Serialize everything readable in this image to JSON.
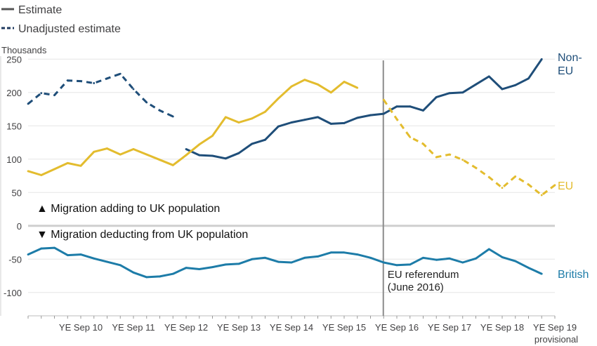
{
  "chart_data": {
    "type": "line",
    "ylabel": "Thousands",
    "ylim": [
      -135,
      265
    ],
    "y_ticks": [
      250,
      200,
      150,
      100,
      50,
      0,
      -50,
      -100
    ],
    "x_tick_labels": [
      "YE Sep 10",
      "YE Sep 11",
      "YE Sep 12",
      "YE Sep 13",
      "YE Sep 14",
      "YE Sep 15",
      "YE Sep 16",
      "YE Sep 17",
      "YE Sep 18",
      "YE Sep 19"
    ],
    "x_tick_sublabel": "provisional",
    "grid": "horizontal",
    "legend": {
      "placement": "top-left",
      "entries": [
        {
          "label": "Estimate",
          "style": "solid"
        },
        {
          "label": "Unadjusted estimate",
          "style": "dashed"
        }
      ]
    },
    "annotations": {
      "up": "▲ Migration adding to UK population",
      "down": "▼ Migration deducting from UK population",
      "referendum_line1": "EU referendum",
      "referendum_line2": "(June 2016)",
      "referendum_quarter": "2016 Q2"
    },
    "x_quarters": [
      "2009 Q3",
      "2009 Q4",
      "2010 Q1",
      "2010 Q2",
      "2010 Q3",
      "2010 Q4",
      "2011 Q1",
      "2011 Q2",
      "2011 Q3",
      "2011 Q4",
      "2012 Q1",
      "2012 Q2",
      "2012 Q3",
      "2012 Q4",
      "2013 Q1",
      "2013 Q2",
      "2013 Q3",
      "2013 Q4",
      "2014 Q1",
      "2014 Q2",
      "2014 Q3",
      "2014 Q4",
      "2015 Q1",
      "2015 Q2",
      "2015 Q3",
      "2015 Q4",
      "2016 Q1",
      "2016 Q2",
      "2016 Q3",
      "2016 Q4",
      "2017 Q1",
      "2017 Q2",
      "2017 Q3",
      "2017 Q4",
      "2018 Q1",
      "2018 Q2",
      "2018 Q3",
      "2018 Q4",
      "2019 Q1",
      "2019 Q2",
      "2019 Q3"
    ],
    "series": [
      {
        "name": "Non-EU",
        "label_lines": [
          "Non-",
          "EU"
        ],
        "color": "#1f4e79",
        "segments": [
          {
            "style": "dashed",
            "start": 0,
            "values": [
              183,
              199,
              196,
              218,
              217,
              214,
              221,
              228,
              205,
              185,
              173,
              164
            ]
          },
          {
            "style": "solid",
            "start": 12,
            "values": [
              115,
              106,
              105,
              101,
              109,
              123,
              129,
              149,
              155,
              159,
              163,
              153,
              154,
              162,
              166,
              168,
              179,
              179,
              173,
              193,
              199,
              200,
              212,
              224,
              205,
              211,
              221,
              250
            ]
          }
        ]
      },
      {
        "name": "EU",
        "label_lines": [
          "EU"
        ],
        "color": "#e3bc2e",
        "segments": [
          {
            "style": "solid",
            "start": 0,
            "values": [
              82,
              76,
              85,
              94,
              90,
              111,
              116,
              107,
              115,
              107,
              99,
              91,
              106,
              122,
              135,
              163,
              155,
              161,
              171,
              191,
              209,
              219,
              212,
              200,
              216,
              207
            ]
          },
          {
            "style": "dashed",
            "start": 27,
            "values": [
              189,
              160,
              133,
              123,
              103,
              107,
              99,
              87,
              73,
              57,
              74,
              62,
              46,
              61
            ]
          }
        ]
      },
      {
        "name": "British",
        "label_lines": [
          "British"
        ],
        "color": "#1d7ca8",
        "segments": [
          {
            "style": "solid",
            "start": 0,
            "values": [
              -43,
              -34,
              -33,
              -44,
              -43,
              -49,
              -54,
              -59,
              -70,
              -77,
              -76,
              -72,
              -63,
              -65,
              -62,
              -58,
              -57,
              -50,
              -48,
              -54,
              -55,
              -48,
              -46,
              -40,
              -40,
              -43,
              -48,
              -55,
              -59,
              -58,
              -48,
              -51,
              -49,
              -55,
              -49,
              -35,
              -47,
              -53,
              -63,
              -72
            ]
          }
        ]
      }
    ]
  }
}
